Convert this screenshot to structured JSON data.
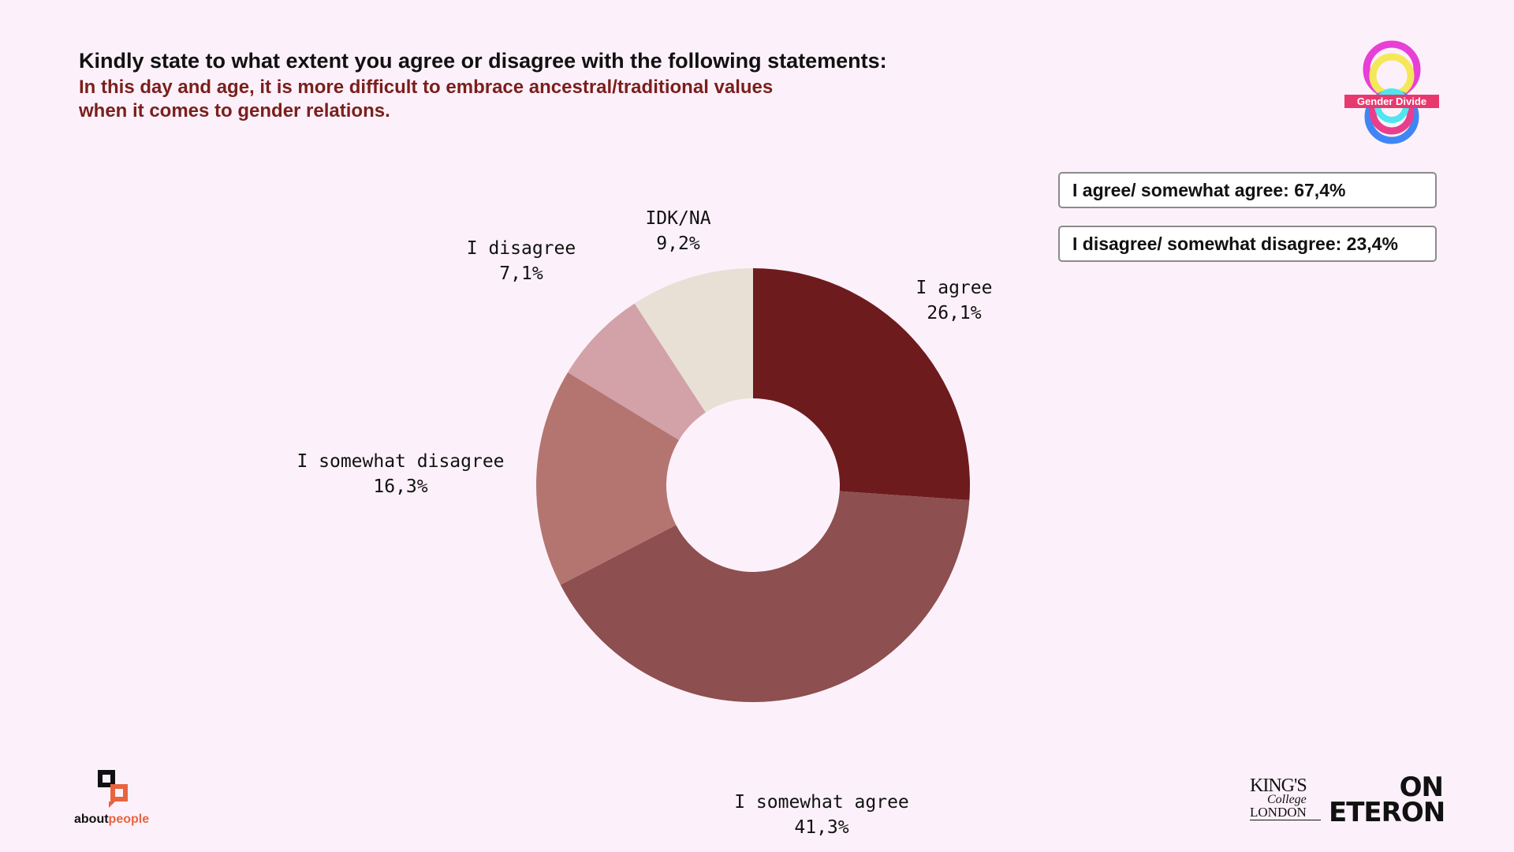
{
  "header": {
    "title": "Kindly state to what extent you agree or disagree with the following statements:",
    "subtitle": "In this day and age, it is more difficult to embrace ancestral/traditional values when it comes to gender relations."
  },
  "summary": {
    "agree": "I agree/ somewhat agree: 67,4%",
    "disagree": "I disagree/ somewhat disagree: 23,4%"
  },
  "branding": {
    "gender_divide_label": "Gender Divide",
    "aboutpeople_about": "about",
    "aboutpeople_people": "people",
    "kings_line1": "KING'S",
    "kings_line2": "College",
    "kings_line3": "LONDON",
    "eteron_on": "ON",
    "eteron_name": "ETERON"
  },
  "colors": {
    "background": "#fcf1fa",
    "title": "#111111",
    "subtitle": "#7a1f1c"
  },
  "chart_data": {
    "type": "pie",
    "donut": true,
    "title": "",
    "slices": [
      {
        "label": "I agree",
        "value": 26.1,
        "value_label": "26,1%",
        "color": "#6e1b1e"
      },
      {
        "label": "I somewhat agree",
        "value": 41.3,
        "value_label": "41,3%",
        "color": "#8d4f4f"
      },
      {
        "label": "I somewhat disagree",
        "value": 16.3,
        "value_label": "16,3%",
        "color": "#b47571"
      },
      {
        "label": "I disagree",
        "value": 7.1,
        "value_label": "7,1%",
        "color": "#d3a1a8"
      },
      {
        "label": "IDK/NA",
        "value": 9.2,
        "value_label": "9,2%",
        "color": "#e8e0d5"
      }
    ]
  }
}
